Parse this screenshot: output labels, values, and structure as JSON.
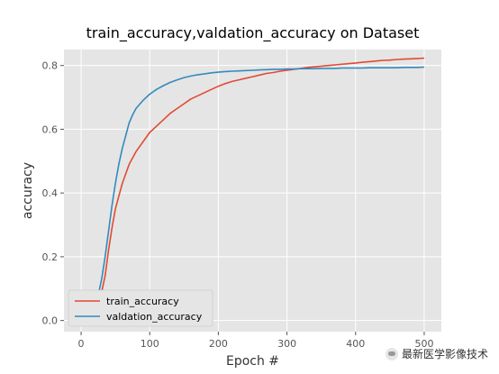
{
  "chart_data": {
    "type": "line",
    "title": "train_accuracy,valdation_accuracy on Dataset",
    "xlabel": "Epoch #",
    "ylabel": "accuracy",
    "xlim": [
      -25,
      525
    ],
    "ylim": [
      -0.035,
      0.85
    ],
    "xticks": [
      0,
      100,
      200,
      300,
      400,
      500
    ],
    "yticks": [
      0.0,
      0.2,
      0.4,
      0.6,
      0.8
    ],
    "ytick_labels": [
      "0.0",
      "0.2",
      "0.4",
      "0.6",
      "0.8"
    ],
    "grid": true,
    "legend_position": "lower-left",
    "series": [
      {
        "name": "train_accuracy",
        "color": "#e24a33",
        "x": [
          0,
          10,
          20,
          25,
          30,
          35,
          40,
          45,
          50,
          55,
          60,
          65,
          70,
          75,
          80,
          90,
          100,
          110,
          120,
          130,
          140,
          150,
          160,
          170,
          180,
          190,
          200,
          210,
          220,
          230,
          240,
          250,
          260,
          270,
          280,
          290,
          300,
          310,
          320,
          330,
          340,
          350,
          360,
          370,
          380,
          390,
          400,
          410,
          420,
          430,
          440,
          450,
          460,
          470,
          480,
          490,
          500
        ],
        "y": [
          0.0,
          0.01,
          0.03,
          0.05,
          0.09,
          0.14,
          0.22,
          0.29,
          0.35,
          0.39,
          0.43,
          0.46,
          0.49,
          0.51,
          0.53,
          0.56,
          0.59,
          0.61,
          0.63,
          0.65,
          0.665,
          0.68,
          0.695,
          0.705,
          0.715,
          0.725,
          0.735,
          0.743,
          0.75,
          0.755,
          0.76,
          0.765,
          0.77,
          0.775,
          0.778,
          0.782,
          0.785,
          0.788,
          0.791,
          0.794,
          0.796,
          0.798,
          0.8,
          0.802,
          0.804,
          0.806,
          0.808,
          0.81,
          0.812,
          0.814,
          0.816,
          0.817,
          0.819,
          0.82,
          0.821,
          0.822,
          0.823
        ]
      },
      {
        "name": "valdation_accuracy",
        "color": "#348abd",
        "x": [
          0,
          10,
          20,
          25,
          30,
          35,
          40,
          45,
          50,
          55,
          60,
          65,
          70,
          75,
          80,
          90,
          100,
          110,
          120,
          130,
          140,
          150,
          160,
          170,
          180,
          190,
          200,
          210,
          220,
          230,
          240,
          250,
          260,
          270,
          280,
          290,
          300,
          310,
          320,
          330,
          340,
          350,
          360,
          370,
          380,
          390,
          400,
          410,
          420,
          430,
          440,
          450,
          460,
          470,
          480,
          490,
          500
        ],
        "y": [
          0.0,
          0.02,
          0.05,
          0.08,
          0.13,
          0.2,
          0.28,
          0.36,
          0.43,
          0.49,
          0.54,
          0.58,
          0.62,
          0.645,
          0.665,
          0.69,
          0.71,
          0.725,
          0.737,
          0.747,
          0.755,
          0.762,
          0.767,
          0.771,
          0.774,
          0.777,
          0.779,
          0.781,
          0.782,
          0.783,
          0.784,
          0.785,
          0.786,
          0.787,
          0.788,
          0.788,
          0.789,
          0.789,
          0.79,
          0.79,
          0.79,
          0.791,
          0.791,
          0.791,
          0.792,
          0.792,
          0.792,
          0.792,
          0.793,
          0.793,
          0.793,
          0.793,
          0.793,
          0.794,
          0.794,
          0.794,
          0.795
        ]
      }
    ]
  },
  "watermark": {
    "text": "最新医学影像技术",
    "icon": "wechat-icon"
  }
}
